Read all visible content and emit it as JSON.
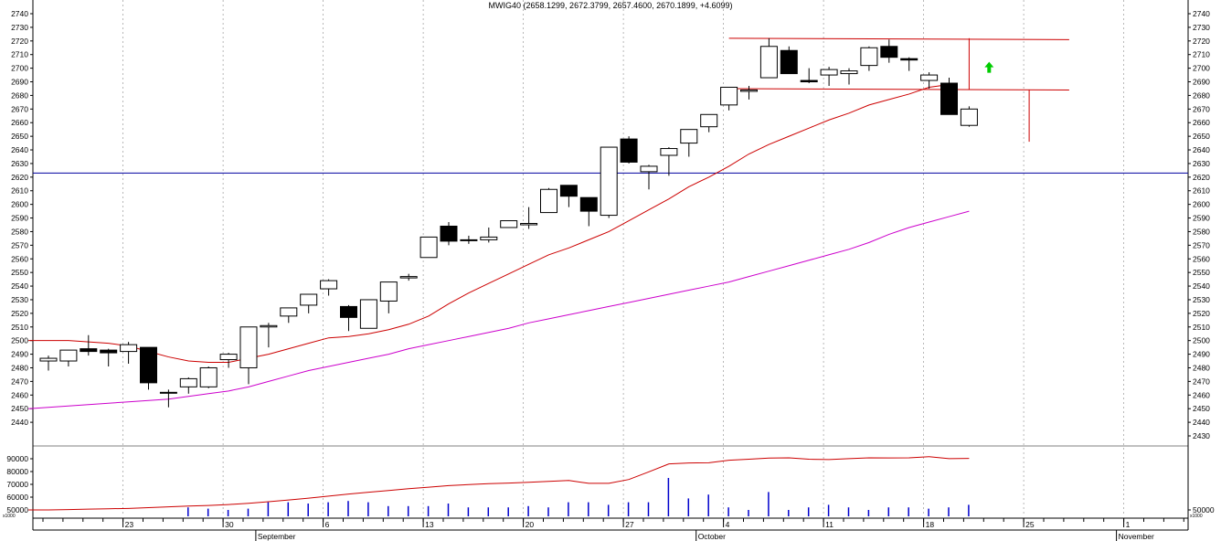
{
  "chart_data": {
    "type": "candlestick",
    "title": "MWIG40 (2658.1299, 2672.3799, 2657.4600, 2670.1899, +4.6099)",
    "price_axis": {
      "ylim": [
        2420,
        2745
      ],
      "ticks": [
        2430,
        2440,
        2450,
        2460,
        2470,
        2480,
        2490,
        2500,
        2510,
        2520,
        2530,
        2540,
        2550,
        2560,
        2570,
        2580,
        2590,
        2600,
        2610,
        2620,
        2630,
        2640,
        2650,
        2660,
        2670,
        2680,
        2690,
        2700,
        2710,
        2720,
        2730,
        2740
      ],
      "left_ticks": [
        2440,
        2450,
        2460,
        2470,
        2480,
        2490,
        2500,
        2510,
        2520,
        2530,
        2540,
        2550,
        2560,
        2570,
        2580,
        2590,
        2600,
        2610,
        2620,
        2630,
        2640,
        2650,
        2660,
        2670,
        2680,
        2690,
        2700,
        2710,
        2720,
        2730,
        2740
      ]
    },
    "volume_axis": {
      "ylim": [
        45000,
        100000
      ],
      "left_ticks": [
        50000,
        60000,
        70000,
        80000,
        90000
      ],
      "right_ticks": [
        50000
      ],
      "unit_label": "x1000"
    },
    "x_axis": {
      "day_labels": [
        {
          "label": "23",
          "index": 4
        },
        {
          "label": "30",
          "index": 9
        },
        {
          "label": "6",
          "index": 14
        },
        {
          "label": "13",
          "index": 19
        },
        {
          "label": "20",
          "index": 24
        },
        {
          "label": "27",
          "index": 29
        },
        {
          "label": "4",
          "index": 34
        },
        {
          "label": "11",
          "index": 39
        },
        {
          "label": "18",
          "index": 44
        },
        {
          "label": "25",
          "index": 49
        },
        {
          "label": "1",
          "index": 54
        }
      ],
      "month_labels": [
        {
          "label": "September",
          "index": 11
        },
        {
          "label": "October",
          "index": 33
        },
        {
          "label": "November",
          "index": 54
        }
      ],
      "total_slots": 58
    },
    "candles": [
      {
        "o": 2485,
        "h": 2489,
        "l": 2478,
        "c": 2487
      },
      {
        "o": 2485,
        "h": 2493,
        "l": 2481,
        "c": 2493
      },
      {
        "o": 2494,
        "h": 2504,
        "l": 2489,
        "c": 2492
      },
      {
        "o": 2493,
        "h": 2494,
        "l": 2481,
        "c": 2491
      },
      {
        "o": 2492,
        "h": 2499,
        "l": 2483,
        "c": 2497
      },
      {
        "o": 2495,
        "h": 2495,
        "l": 2464,
        "c": 2469
      },
      {
        "o": 2462,
        "h": 2464,
        "l": 2451,
        "c": 2462
      },
      {
        "o": 2466,
        "h": 2473,
        "l": 2461,
        "c": 2472
      },
      {
        "o": 2466,
        "h": 2481,
        "l": 2465,
        "c": 2480
      },
      {
        "o": 2486,
        "h": 2491,
        "l": 2480,
        "c": 2490
      },
      {
        "o": 2480,
        "h": 2510,
        "l": 2468,
        "c": 2510
      },
      {
        "o": 2510,
        "h": 2513,
        "l": 2495,
        "c": 2511
      },
      {
        "o": 2518,
        "h": 2524,
        "l": 2513,
        "c": 2524
      },
      {
        "o": 2526,
        "h": 2534,
        "l": 2520,
        "c": 2534
      },
      {
        "o": 2538,
        "h": 2545,
        "l": 2533,
        "c": 2544
      },
      {
        "o": 2525,
        "h": 2526,
        "l": 2507,
        "c": 2517
      },
      {
        "o": 2509,
        "h": 2530,
        "l": 2509,
        "c": 2530
      },
      {
        "o": 2529,
        "h": 2543,
        "l": 2520,
        "c": 2543
      },
      {
        "o": 2546,
        "h": 2549,
        "l": 2544,
        "c": 2547
      },
      {
        "o": 2561,
        "h": 2576,
        "l": 2561,
        "c": 2576
      },
      {
        "o": 2584,
        "h": 2587,
        "l": 2570,
        "c": 2573
      },
      {
        "o": 2574,
        "h": 2577,
        "l": 2571,
        "c": 2574
      },
      {
        "o": 2574,
        "h": 2583,
        "l": 2572,
        "c": 2576
      },
      {
        "o": 2583,
        "h": 2588,
        "l": 2583,
        "c": 2588
      },
      {
        "o": 2585,
        "h": 2598,
        "l": 2582,
        "c": 2586
      },
      {
        "o": 2594,
        "h": 2612,
        "l": 2594,
        "c": 2611
      },
      {
        "o": 2614,
        "h": 2614,
        "l": 2598,
        "c": 2606
      },
      {
        "o": 2605,
        "h": 2605,
        "l": 2584,
        "c": 2595
      },
      {
        "o": 2592,
        "h": 2642,
        "l": 2590,
        "c": 2642
      },
      {
        "o": 2648,
        "h": 2650,
        "l": 2630,
        "c": 2631
      },
      {
        "o": 2624,
        "h": 2629,
        "l": 2611,
        "c": 2628
      },
      {
        "o": 2636,
        "h": 2642,
        "l": 2621,
        "c": 2641
      },
      {
        "o": 2645,
        "h": 2655,
        "l": 2635,
        "c": 2655
      },
      {
        "o": 2657,
        "h": 2666,
        "l": 2653,
        "c": 2666
      },
      {
        "o": 2673,
        "h": 2686,
        "l": 2669,
        "c": 2686
      },
      {
        "o": 2683,
        "h": 2687,
        "l": 2677,
        "c": 2684
      },
      {
        "o": 2693,
        "h": 2722,
        "l": 2693,
        "c": 2716
      },
      {
        "o": 2713,
        "h": 2716,
        "l": 2696,
        "c": 2696
      },
      {
        "o": 2691,
        "h": 2700,
        "l": 2689,
        "c": 2690
      },
      {
        "o": 2695,
        "h": 2701,
        "l": 2687,
        "c": 2699
      },
      {
        "o": 2696,
        "h": 2700,
        "l": 2688,
        "c": 2698
      },
      {
        "o": 2702,
        "h": 2716,
        "l": 2698,
        "c": 2715
      },
      {
        "o": 2716,
        "h": 2721,
        "l": 2704,
        "c": 2708
      },
      {
        "o": 2707,
        "h": 2708,
        "l": 2698,
        "c": 2706
      },
      {
        "o": 2691,
        "h": 2697,
        "l": 2685,
        "c": 2695
      },
      {
        "o": 2689,
        "h": 2693,
        "l": 2666,
        "c": 2666
      },
      {
        "o": 2658,
        "h": 2672,
        "l": 2657,
        "c": 2670
      }
    ],
    "ma_short": [
      2500,
      2500,
      2500,
      2499,
      2498,
      2496,
      2492,
      2488,
      2485,
      2484,
      2484,
      2487,
      2490,
      2494,
      2498,
      2502,
      2503,
      2505,
      2508,
      2512,
      2518,
      2527,
      2535,
      2542,
      2549,
      2556,
      2563,
      2568,
      2574,
      2580,
      2588,
      2596,
      2604,
      2613,
      2620,
      2628,
      2637,
      2644,
      2650,
      2656,
      2662,
      2667,
      2673,
      2677,
      2681,
      2686,
      2688
    ],
    "ma_long": [
      2450,
      2451,
      2452,
      2453,
      2454,
      2455,
      2456,
      2457,
      2459,
      2461,
      2463,
      2466,
      2470,
      2474,
      2478,
      2481,
      2484,
      2487,
      2490,
      2494,
      2497,
      2500,
      2503,
      2506,
      2509,
      2513,
      2516,
      2519,
      2522,
      2525,
      2528,
      2531,
      2534,
      2537,
      2540,
      2543,
      2547,
      2551,
      2555,
      2559,
      2563,
      2567,
      2572,
      2578,
      2583,
      2587,
      2591,
      2595
    ],
    "volume": [
      0,
      0,
      0,
      0,
      0,
      0,
      0,
      52000,
      51000,
      50000,
      51000,
      56000,
      56000,
      55000,
      56000,
      57000,
      56000,
      53000,
      53000,
      53000,
      55000,
      52000,
      52000,
      52000,
      53000,
      52000,
      56000,
      56000,
      54000,
      56000,
      56000,
      75000,
      59000,
      62000,
      52000,
      50000,
      64000,
      50000,
      52000,
      54000,
      52000,
      50000,
      52000,
      52000,
      51000,
      52000,
      54000
    ],
    "volume_ma": [
      50000,
      50000,
      50300,
      50600,
      50900,
      51200,
      51800,
      52400,
      53000,
      53500,
      54200,
      55200,
      56400,
      57800,
      59200,
      60800,
      62400,
      63800,
      65200,
      66600,
      67800,
      69000,
      69800,
      70500,
      71000,
      71600,
      72300,
      73000,
      70800,
      70800,
      73800,
      79800,
      86000,
      86700,
      86900,
      88800,
      89600,
      90500,
      90700,
      89600,
      89400,
      90100,
      90700,
      90600,
      90700,
      91600,
      90100,
      90300
    ],
    "horizontal_line": {
      "value": 2623,
      "color": "#0000a0"
    },
    "channel": {
      "upper": [
        {
          "i": 34,
          "v": 2722
        },
        {
          "i": 51,
          "v": 2721
        }
      ],
      "lower": [
        {
          "i": 34,
          "v": 2685
        },
        {
          "i": 51,
          "v": 2684
        }
      ],
      "mid_vertical": {
        "i": 46,
        "v1": 2722,
        "v2": 2684
      },
      "target_vertical": {
        "i": 49,
        "v1": 2684,
        "v2": 2646
      },
      "color": "#cc0000"
    },
    "signal_arrow": {
      "i": 47,
      "v": 2700,
      "color": "#00cc00"
    },
    "colors": {
      "ma_short": "#cc0000",
      "ma_long": "#cc00cc",
      "volume_bar": "#0000cc",
      "volume_ma": "#cc0000",
      "grid": "#999999",
      "candle_up_fill": "#ffffff",
      "candle_down_fill": "#000000"
    }
  }
}
